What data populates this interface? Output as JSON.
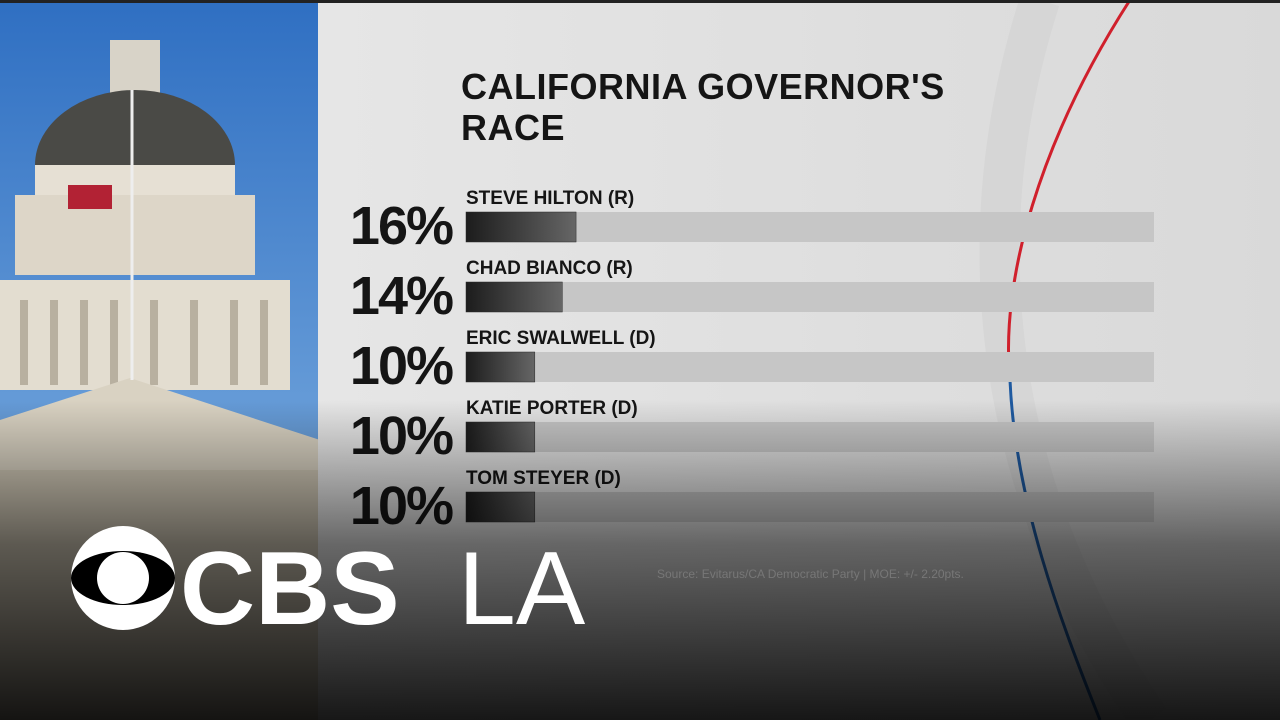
{
  "chart_data": {
    "type": "bar",
    "orientation": "horizontal",
    "title": "CALIFORNIA GOVERNOR'S RACE",
    "categories": [
      "STEVE HILTON (R)",
      "CHAD BIANCO (R)",
      "ERIC SWALWELL (D)",
      "KATIE PORTER (D)",
      "TOM STEYER (D)"
    ],
    "values": [
      16,
      14,
      10,
      10,
      10
    ],
    "value_labels": [
      "16%",
      "14%",
      "10%",
      "10%",
      "10%"
    ],
    "color": "#2a2a2a",
    "xlim": [
      0,
      100
    ],
    "source": "Source: Evitarus/CA Democratic Party  |  MOE: +/- 2.20pts."
  },
  "logo": {
    "network": "CBS",
    "station": "LA"
  }
}
